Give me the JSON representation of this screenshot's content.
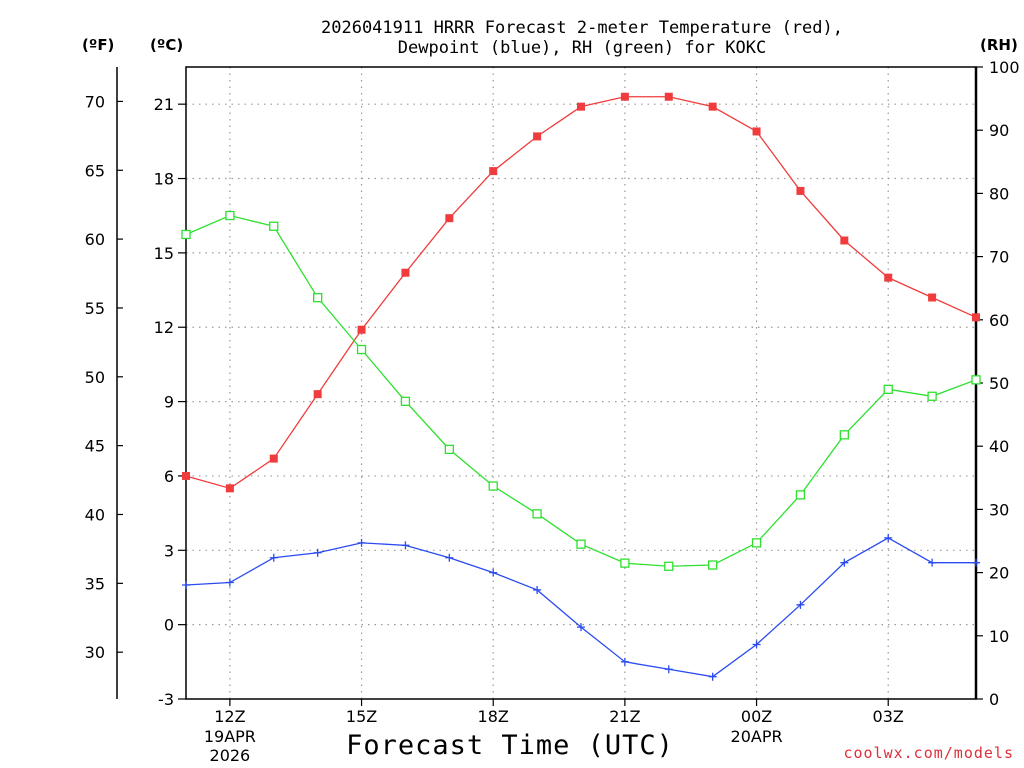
{
  "chart_data": {
    "type": "line",
    "title_lines": [
      "2026041911 HRRR Forecast 2-meter Temperature (red),",
      "Dewpoint (blue), RH (green) for KOKC"
    ],
    "xlabel": "Forecast Time (UTC)",
    "x_ticks": [
      {
        "hour": 12,
        "label": "12Z",
        "sub1": "19APR",
        "sub2": "2026"
      },
      {
        "hour": 15,
        "label": "15Z",
        "sub1": "",
        "sub2": ""
      },
      {
        "hour": 18,
        "label": "18Z",
        "sub1": "",
        "sub2": ""
      },
      {
        "hour": 21,
        "label": "21Z",
        "sub1": "",
        "sub2": ""
      },
      {
        "hour": 24,
        "label": "00Z",
        "sub1": "20APR",
        "sub2": ""
      },
      {
        "hour": 27,
        "label": "03Z",
        "sub1": "",
        "sub2": ""
      }
    ],
    "xlim": [
      11,
      29
    ],
    "hours": [
      11,
      12,
      13,
      14,
      15,
      16,
      17,
      18,
      19,
      20,
      21,
      22,
      23,
      24,
      25,
      26,
      27,
      28,
      29
    ],
    "celsius_axis": {
      "unit_label": "(ºC)",
      "ylim": [
        -3,
        22.5
      ],
      "ticks": [
        -3,
        0,
        3,
        6,
        9,
        12,
        15,
        18,
        21
      ]
    },
    "fahrenheit_axis": {
      "unit_label": "(ºF)",
      "ticks": [
        30,
        35,
        40,
        45,
        50,
        55,
        60,
        65,
        70
      ]
    },
    "rh_axis": {
      "unit_label": "(RH)",
      "ylim": [
        0,
        100
      ],
      "ticks": [
        0,
        10,
        20,
        30,
        40,
        50,
        60,
        70,
        80,
        90,
        100
      ]
    },
    "series": [
      {
        "name": "2-meter Temperature",
        "unit": "C",
        "color": "#f03c3c",
        "marker": "filled-square",
        "values": [
          6.0,
          5.5,
          6.7,
          9.3,
          11.9,
          14.2,
          16.4,
          18.3,
          19.7,
          20.9,
          21.3,
          21.3,
          20.9,
          19.9,
          17.5,
          15.5,
          14.0,
          13.2,
          12.4
        ]
      },
      {
        "name": "Dewpoint",
        "unit": "C",
        "color": "#2a4bf0",
        "marker": "plus",
        "values": [
          1.6,
          1.7,
          2.7,
          2.9,
          3.3,
          3.2,
          2.7,
          2.1,
          1.4,
          -0.1,
          -1.5,
          -1.8,
          -2.1,
          -0.8,
          0.8,
          2.5,
          3.5,
          2.5,
          2.5
        ]
      },
      {
        "name": "RH",
        "unit": "%",
        "color": "#2ee02e",
        "marker": "open-square",
        "values": [
          73.5,
          76.5,
          74.8,
          63.5,
          55.3,
          47.1,
          39.5,
          33.7,
          29.3,
          24.5,
          21.5,
          21.0,
          21.2,
          24.7,
          32.3,
          41.8,
          49.0,
          47.9,
          50.5
        ]
      }
    ]
  },
  "credit": "coolwx.com/models"
}
